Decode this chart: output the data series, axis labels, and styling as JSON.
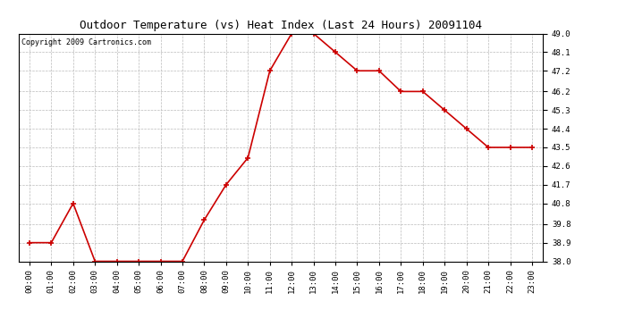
{
  "title": "Outdoor Temperature (vs) Heat Index (Last 24 Hours) 20091104",
  "copyright": "Copyright 2009 Cartronics.com",
  "x_labels": [
    "00:00",
    "01:00",
    "02:00",
    "03:00",
    "04:00",
    "05:00",
    "06:00",
    "07:00",
    "08:00",
    "09:00",
    "10:00",
    "11:00",
    "12:00",
    "13:00",
    "14:00",
    "15:00",
    "16:00",
    "17:00",
    "18:00",
    "19:00",
    "20:00",
    "21:00",
    "22:00",
    "23:00"
  ],
  "y_values": [
    38.9,
    38.9,
    40.8,
    38.0,
    38.0,
    38.0,
    38.0,
    38.0,
    40.0,
    41.7,
    43.0,
    47.2,
    49.0,
    49.0,
    48.1,
    47.2,
    47.2,
    46.2,
    46.2,
    45.3,
    44.4,
    43.5,
    43.5,
    43.5
  ],
  "y_ticks": [
    38.0,
    38.9,
    39.8,
    40.8,
    41.7,
    42.6,
    43.5,
    44.4,
    45.3,
    46.2,
    47.2,
    48.1,
    49.0
  ],
  "y_min": 38.0,
  "y_max": 49.0,
  "line_color": "#cc0000",
  "marker": "+",
  "marker_size": 4,
  "bg_color": "#ffffff",
  "plot_bg_color": "#ffffff",
  "grid_color": "#bbbbbb",
  "title_fontsize": 9,
  "copyright_fontsize": 6,
  "tick_fontsize": 6.5
}
